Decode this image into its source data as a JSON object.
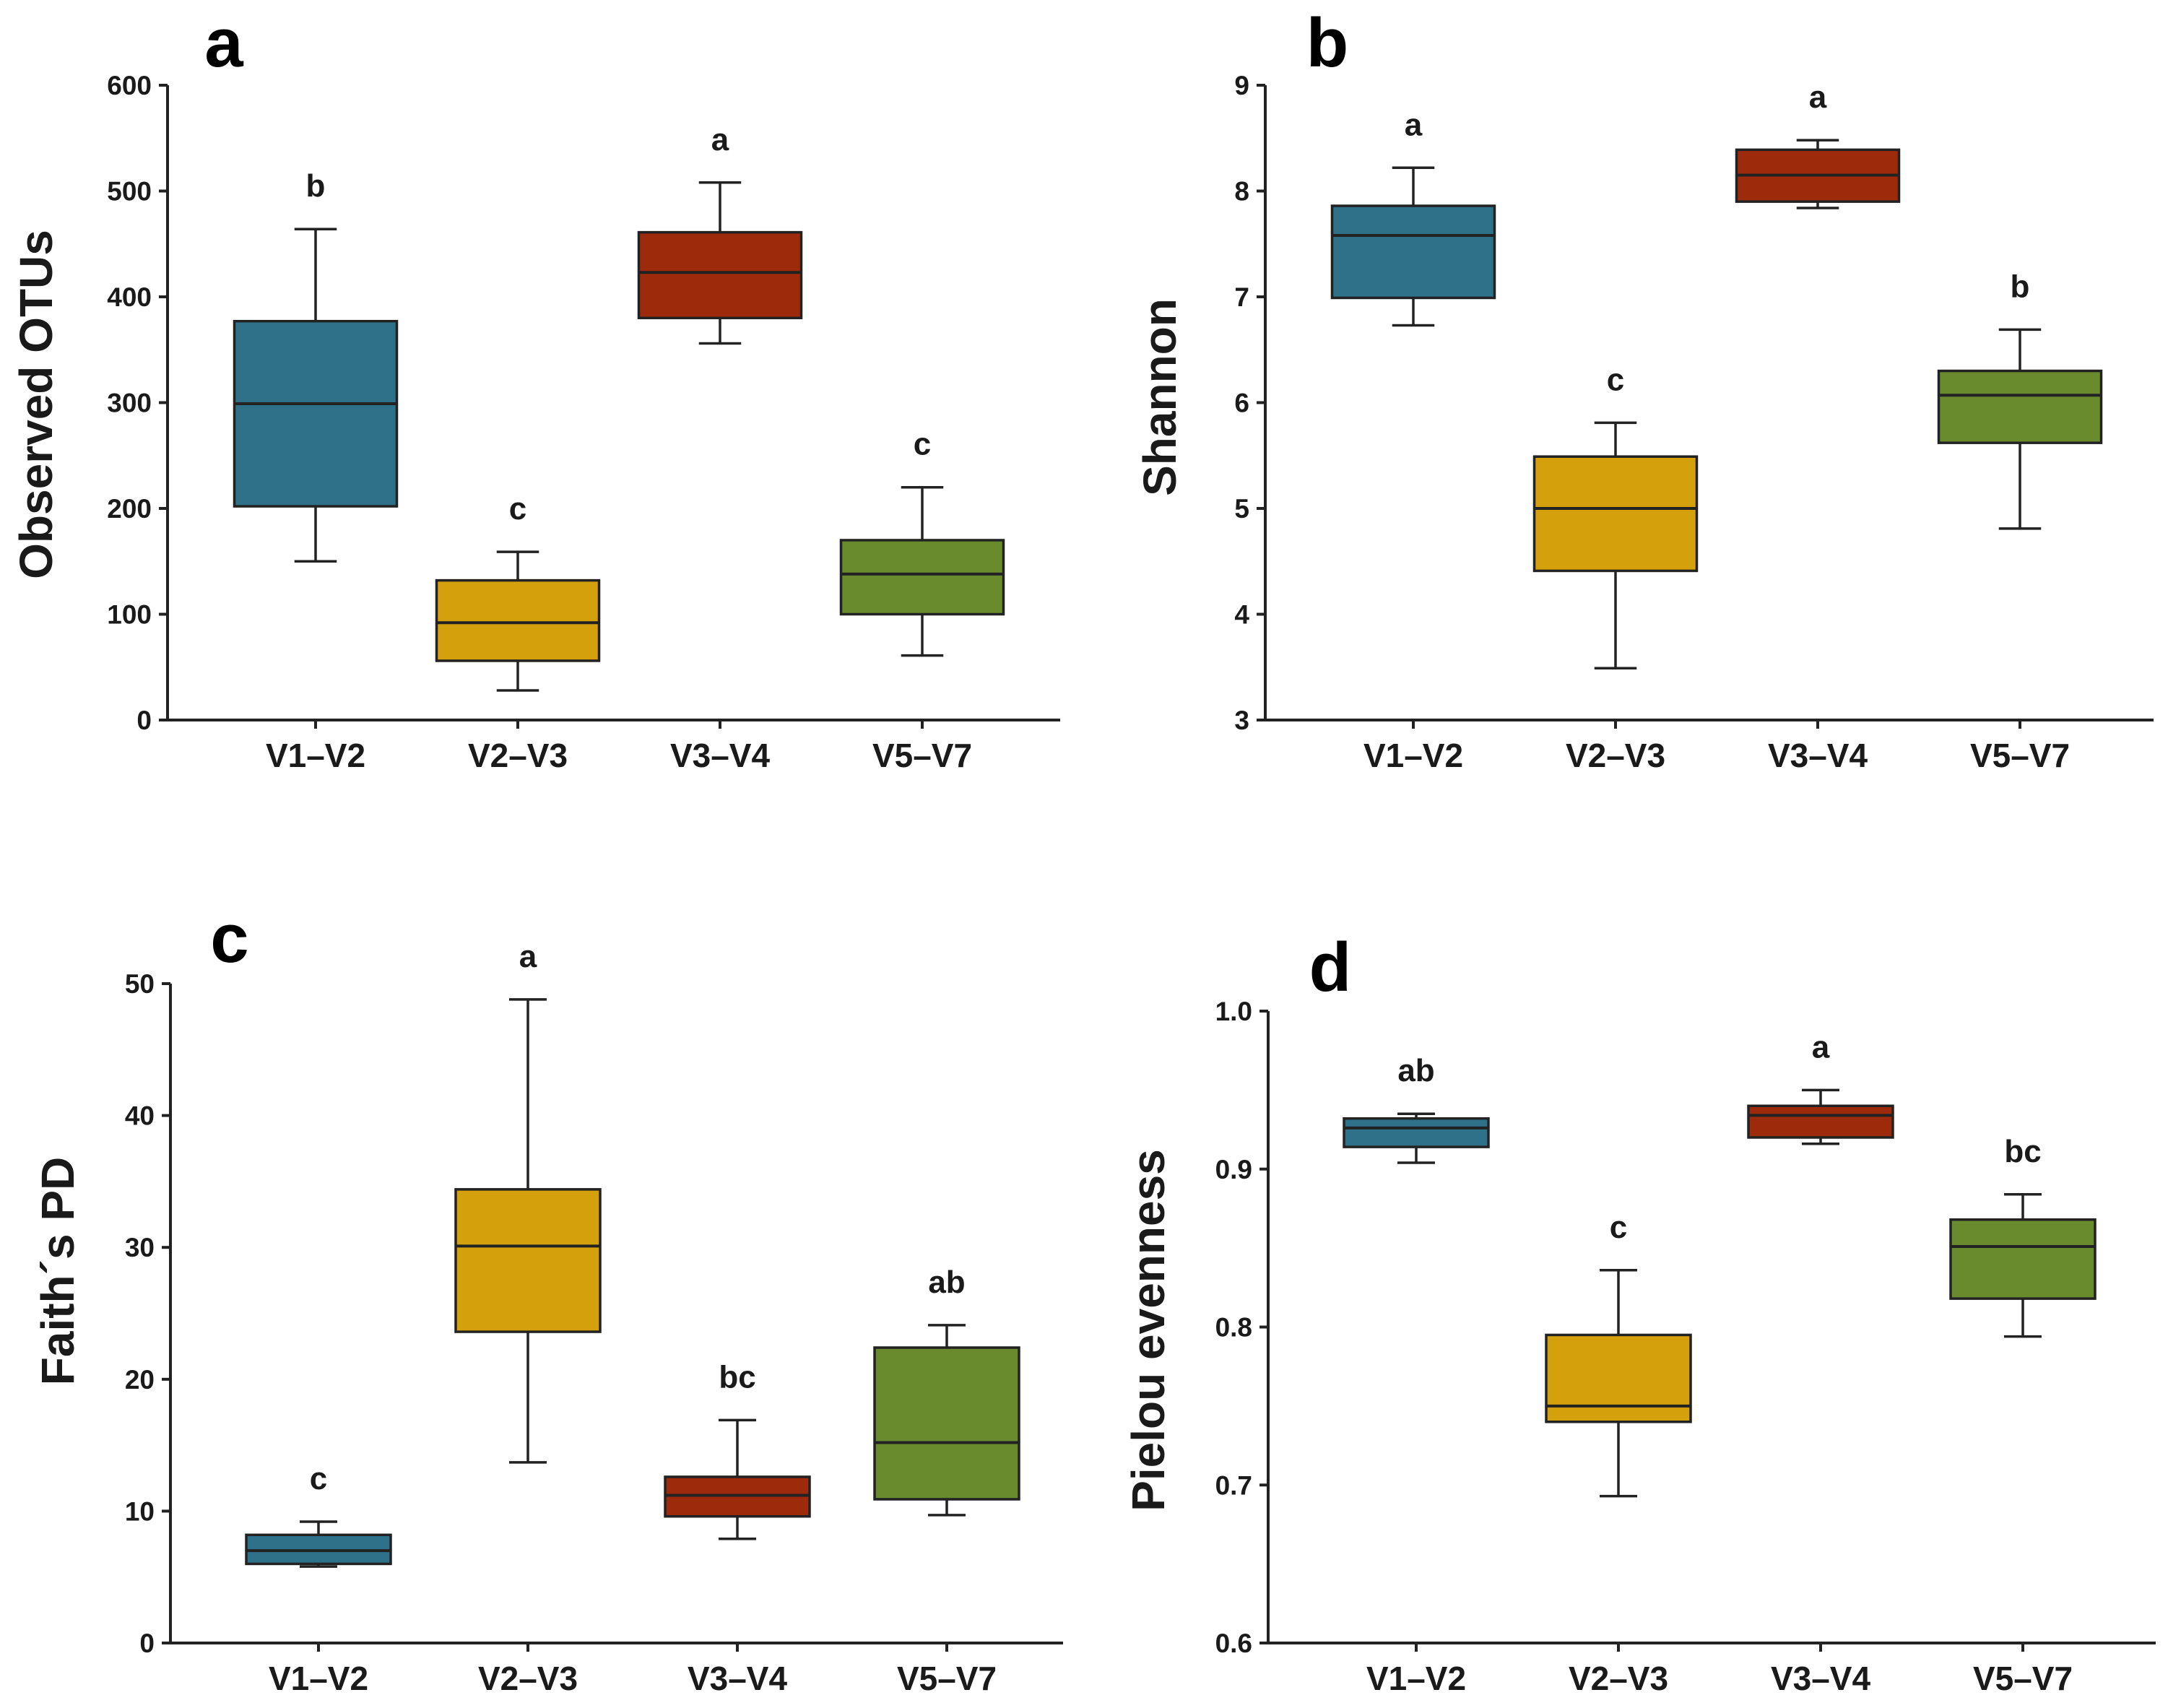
{
  "chart_data": [
    {
      "type": "boxplot",
      "panel": "a",
      "ylabel": "Observed OTUs",
      "ylim": [
        0,
        600
      ],
      "yticks": [
        0,
        100,
        200,
        300,
        400,
        500,
        600
      ],
      "categories": [
        "V1–V2",
        "V2–V3",
        "V3–V4",
        "V5–V7"
      ],
      "colors": [
        "#2e7189",
        "#d4a00c",
        "#9e2a0c",
        "#6a8a2e"
      ],
      "boxes": [
        {
          "min": 150,
          "q1": 202,
          "median": 299,
          "q3": 377,
          "max": 464,
          "letter": "b"
        },
        {
          "min": 28,
          "q1": 56,
          "median": 92,
          "q3": 132,
          "max": 159,
          "letter": "c"
        },
        {
          "min": 356,
          "q1": 380,
          "median": 423,
          "q3": 461,
          "max": 508,
          "letter": "a"
        },
        {
          "min": 61,
          "q1": 100,
          "median": 138,
          "q3": 170,
          "max": 220,
          "letter": "c"
        }
      ]
    },
    {
      "type": "boxplot",
      "panel": "b",
      "ylabel": "Shannon",
      "ylim": [
        3,
        9
      ],
      "yticks": [
        3,
        4,
        5,
        6,
        7,
        8,
        9
      ],
      "categories": [
        "V1–V2",
        "V2–V3",
        "V3–V4",
        "V5–V7"
      ],
      "colors": [
        "#2e7189",
        "#d4a00c",
        "#9e2a0c",
        "#6a8a2e"
      ],
      "boxes": [
        {
          "min": 6.73,
          "q1": 6.99,
          "median": 7.58,
          "q3": 7.86,
          "max": 8.22,
          "letter": "a"
        },
        {
          "min": 3.49,
          "q1": 4.41,
          "median": 5.0,
          "q3": 5.49,
          "max": 5.81,
          "letter": "c"
        },
        {
          "min": 7.84,
          "q1": 7.9,
          "median": 8.15,
          "q3": 8.39,
          "max": 8.48,
          "letter": "a"
        },
        {
          "min": 4.81,
          "q1": 5.62,
          "median": 6.07,
          "q3": 6.3,
          "max": 6.69,
          "letter": "b"
        }
      ]
    },
    {
      "type": "boxplot",
      "panel": "c",
      "ylabel": "Faith´s PD",
      "ylim": [
        0,
        50
      ],
      "yticks": [
        0,
        10,
        20,
        30,
        40,
        50
      ],
      "categories": [
        "V1–V2",
        "V2–V3",
        "V3–V4",
        "V5–V7"
      ],
      "colors": [
        "#2e7189",
        "#d4a00c",
        "#9e2a0c",
        "#6a8a2e"
      ],
      "boxes": [
        {
          "min": 5.8,
          "q1": 6.0,
          "median": 7.0,
          "q3": 8.2,
          "max": 9.2,
          "letter": "c"
        },
        {
          "min": 13.7,
          "q1": 23.6,
          "median": 30.1,
          "q3": 34.4,
          "max": 48.8,
          "letter": "a"
        },
        {
          "min": 7.9,
          "q1": 9.6,
          "median": 11.2,
          "q3": 12.6,
          "max": 16.9,
          "letter": "bc"
        },
        {
          "min": 9.7,
          "q1": 10.9,
          "median": 15.2,
          "q3": 22.4,
          "max": 24.1,
          "letter": "ab"
        }
      ]
    },
    {
      "type": "boxplot",
      "panel": "d",
      "ylabel": "Pielou evenness",
      "ylim": [
        0.6,
        1.0
      ],
      "yticks": [
        "0.6",
        "0.7",
        "0.8",
        "0.9",
        "1.0"
      ],
      "categories": [
        "V1–V2",
        "V2–V3",
        "V3–V4",
        "V5–V7"
      ],
      "colors": [
        "#2e7189",
        "#d4a00c",
        "#9e2a0c",
        "#6a8a2e"
      ],
      "boxes": [
        {
          "min": 0.904,
          "q1": 0.914,
          "median": 0.926,
          "q3": 0.932,
          "max": 0.935,
          "letter": "ab"
        },
        {
          "min": 0.693,
          "q1": 0.74,
          "median": 0.75,
          "q3": 0.795,
          "max": 0.836,
          "letter": "c"
        },
        {
          "min": 0.916,
          "q1": 0.92,
          "median": 0.934,
          "q3": 0.94,
          "max": 0.95,
          "letter": "a"
        },
        {
          "min": 0.794,
          "q1": 0.818,
          "median": 0.851,
          "q3": 0.868,
          "max": 0.884,
          "letter": "bc"
        }
      ]
    }
  ]
}
